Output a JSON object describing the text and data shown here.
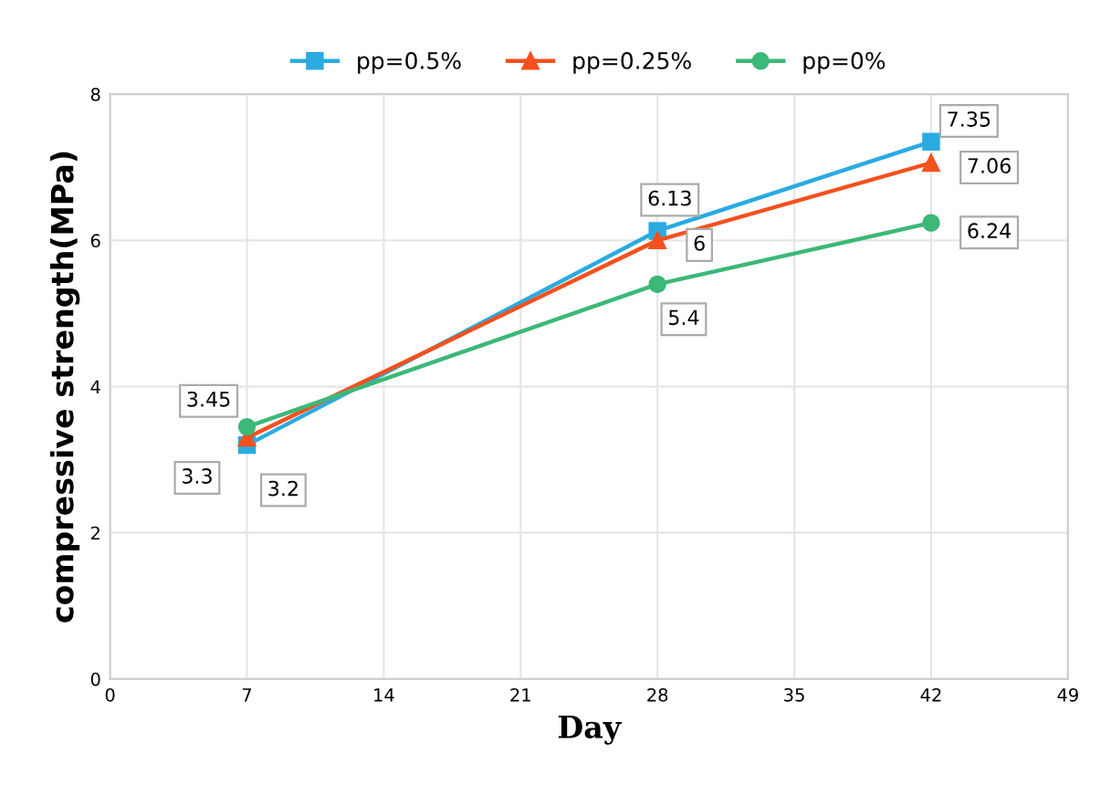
{
  "chart_data": {
    "type": "line",
    "xlabel": "Day",
    "ylabel": "compressive strength(MPa)",
    "x": [
      7,
      28,
      42
    ],
    "series": [
      {
        "name": "pp=0.5%",
        "color": "#29abe2",
        "marker": "square",
        "values": [
          3.2,
          6.13,
          7.35
        ]
      },
      {
        "name": "pp=0.25%",
        "color": "#f4511e",
        "marker": "triangle",
        "values": [
          3.3,
          6,
          7.06
        ]
      },
      {
        "name": "pp=0%",
        "color": "#3cb878",
        "marker": "circle",
        "values": [
          3.45,
          5.4,
          6.24
        ]
      }
    ],
    "xlim": [
      0,
      49
    ],
    "xticks": [
      0,
      7,
      14,
      21,
      28,
      35,
      42,
      49
    ],
    "ylim": [
      0,
      8
    ],
    "yticks": [
      0,
      2,
      4,
      6,
      8
    ],
    "grid": true,
    "legend": "top",
    "data_labels": true,
    "line_style": "solid"
  }
}
